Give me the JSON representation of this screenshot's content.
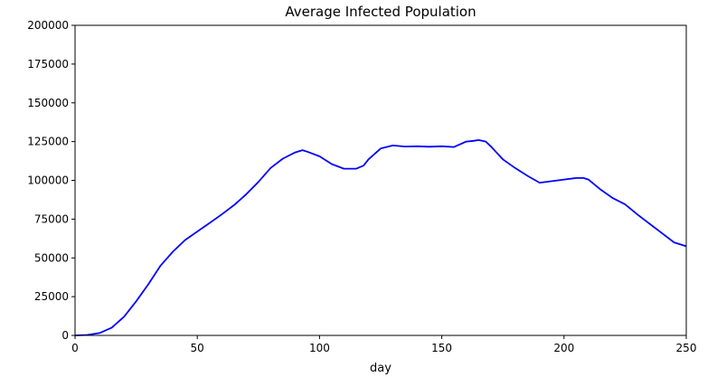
{
  "chart_data": {
    "type": "line",
    "title": "Average Infected Population",
    "xlabel": "day",
    "ylabel": "",
    "xlim": [
      0,
      250
    ],
    "ylim": [
      0,
      200000
    ],
    "xticks": [
      "0",
      "50",
      "100",
      "150",
      "200",
      "250"
    ],
    "yticks": [
      "0",
      "25000",
      "50000",
      "75000",
      "100000",
      "125000",
      "150000",
      "175000",
      "200000"
    ],
    "grid": false,
    "legend": "none",
    "series": [
      {
        "color": "#0000ff",
        "x": [
          0,
          5,
          10,
          15,
          20,
          25,
          30,
          35,
          40,
          45,
          50,
          55,
          60,
          65,
          70,
          75,
          80,
          85,
          90,
          93,
          95,
          100,
          105,
          110,
          115,
          118,
          120,
          125,
          130,
          135,
          140,
          145,
          150,
          155,
          160,
          163,
          165,
          168,
          170,
          175,
          180,
          185,
          190,
          195,
          200,
          205,
          208,
          210,
          215,
          220,
          225,
          230,
          235,
          240,
          245,
          250
        ],
        "y": [
          0,
          300,
          1500,
          5000,
          12000,
          22000,
          33000,
          45000,
          54000,
          61500,
          67000,
          72500,
          78000,
          84000,
          91000,
          99000,
          108000,
          114000,
          118000,
          119500,
          118500,
          115500,
          110500,
          107500,
          107500,
          109500,
          113500,
          120500,
          122500,
          121800,
          122000,
          121700,
          122000,
          121500,
          125000,
          125500,
          126000,
          125000,
          122000,
          113500,
          108000,
          103000,
          98500,
          99500,
          100500,
          101500,
          101500,
          100500,
          94000,
          88500,
          84500,
          78000,
          72000,
          66000,
          60000,
          57500
        ]
      }
    ]
  }
}
